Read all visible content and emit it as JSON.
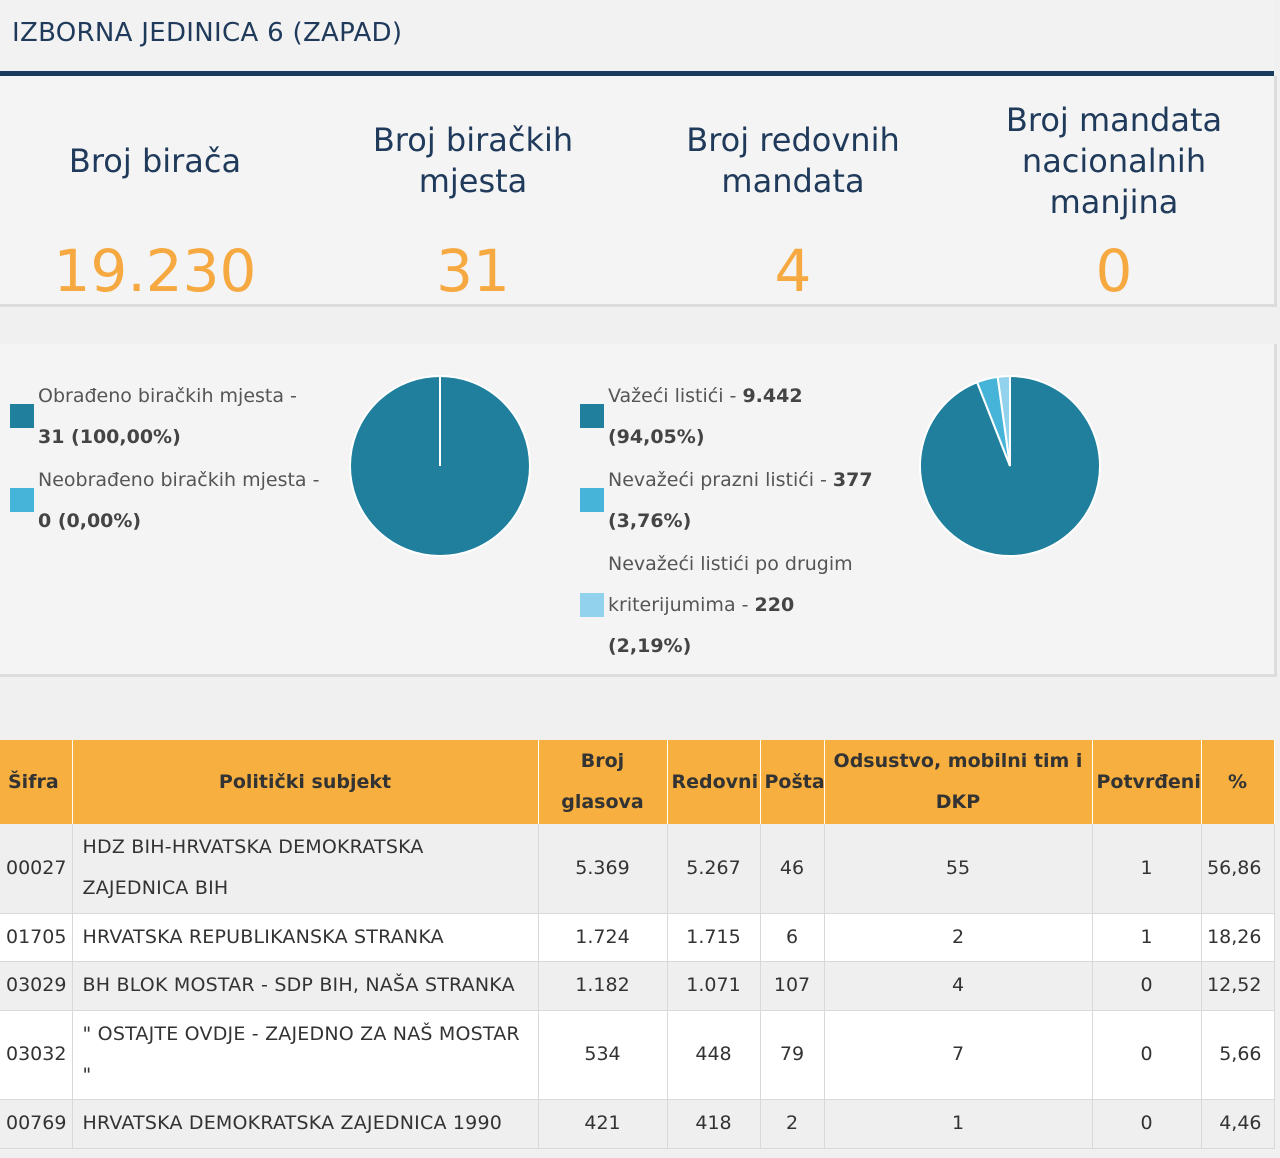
{
  "header": {
    "title": "IZBORNA JEDINICA 6 (ZAPAD)"
  },
  "stats": [
    {
      "label": "Broj birača",
      "value": "19.230"
    },
    {
      "label": "Broj biračkih mjesta",
      "value": "31"
    },
    {
      "label": "Broj redovnih mandata",
      "value": "4"
    },
    {
      "label": "Broj mandata nacionalnih manjina",
      "value": "0"
    }
  ],
  "colors": {
    "dark_teal": "#1f7f9c",
    "light_blue": "#46b3d8",
    "pale_blue": "#92d2ec",
    "orange": "#f7a941",
    "header_navy": "#163b5c"
  },
  "polling_chart": {
    "legend": [
      {
        "label": "Obrađeno biračkih mjesta - ",
        "value": "31 (100,00%)",
        "color": "#1f7f9c"
      },
      {
        "label": "Neobrađeno biračkih mjesta - ",
        "value": "0 (0,00%)",
        "color": "#46b3d8"
      }
    ]
  },
  "ballots_chart": {
    "legend": [
      {
        "label": "Važeći listići - ",
        "value": "9.442 (94,05%)",
        "color": "#1f7f9c"
      },
      {
        "label": "Nevažeći prazni listići - ",
        "value": "377 (3,76%)",
        "color": "#46b3d8"
      },
      {
        "label": "Nevažeći listići po drugim kriterijumima - ",
        "value": "220 (2,19%)",
        "color": "#92d2ec"
      }
    ]
  },
  "chart_data": [
    {
      "type": "pie",
      "labels": [
        "Obrađeno biračkih mjesta",
        "Neobrađeno biračkih mjesta"
      ],
      "values": [
        100.0,
        0.0
      ],
      "colors": [
        "#1f7f9c",
        "#46b3d8"
      ]
    },
    {
      "type": "pie",
      "labels": [
        "Važeći listići",
        "Nevažeći prazni listići",
        "Nevažeći listići po drugim kriterijumima"
      ],
      "values": [
        94.05,
        3.76,
        2.19
      ],
      "colors": [
        "#1f7f9c",
        "#46b3d8",
        "#92d2ec"
      ]
    }
  ],
  "table": {
    "headers": [
      "Šifra",
      "Politički subjekt",
      "Broj glasova",
      "Redovni",
      "Pošta",
      "Odsustvo, mobilni tim i DKP",
      "Potvrđeni",
      "%"
    ],
    "rows": [
      {
        "code": "00027",
        "name": "HDZ BIH-HRVATSKA DEMOKRATSKA ZAJEDNICA BIH",
        "votes": "5.369",
        "regular": "5.267",
        "post": "46",
        "absent": "55",
        "confirmed": "1",
        "pct": "56,86"
      },
      {
        "code": "01705",
        "name": "HRVATSKA REPUBLIKANSKA STRANKA",
        "votes": "1.724",
        "regular": "1.715",
        "post": "6",
        "absent": "2",
        "confirmed": "1",
        "pct": "18,26"
      },
      {
        "code": "03029",
        "name": "BH BLOK MOSTAR - SDP BIH, NAŠA STRANKA",
        "votes": "1.182",
        "regular": "1.071",
        "post": "107",
        "absent": "4",
        "confirmed": "0",
        "pct": "12,52"
      },
      {
        "code": "03032",
        "name": "\" OSTAJTE OVDJE - ZAJEDNO ZA NAŠ MOSTAR \"",
        "votes": "534",
        "regular": "448",
        "post": "79",
        "absent": "7",
        "confirmed": "0",
        "pct": "5,66"
      },
      {
        "code": "00769",
        "name": "HRVATSKA DEMOKRATSKA ZAJEDNICA 1990",
        "votes": "421",
        "regular": "418",
        "post": "2",
        "absent": "1",
        "confirmed": "0",
        "pct": "4,46"
      }
    ]
  }
}
